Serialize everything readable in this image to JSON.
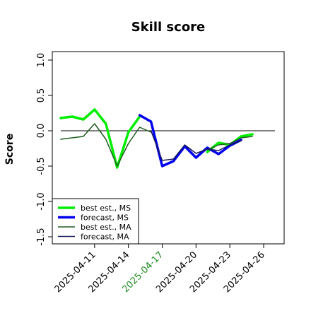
{
  "chart_data": {
    "type": "line",
    "title": "Skill score",
    "xlabel": "",
    "ylabel": "Score",
    "ylim": [
      -1.55,
      1.1
    ],
    "yticks": [
      1.0,
      0.5,
      0.0,
      -0.5,
      -1.0,
      -1.5
    ],
    "ytick_labels": [
      "1.0",
      "0.5",
      "0.0",
      "-0.5",
      "-1.0",
      "-1.5"
    ],
    "x": [
      "2025-04-08",
      "2025-04-09",
      "2025-04-10",
      "2025-04-11",
      "2025-04-12",
      "2025-04-13",
      "2025-04-14",
      "2025-04-15",
      "2025-04-16",
      "2025-04-17",
      "2025-04-18",
      "2025-04-19",
      "2025-04-20",
      "2025-04-21",
      "2025-04-22",
      "2025-04-23",
      "2025-04-24",
      "2025-04-25",
      "2025-04-26"
    ],
    "x_tick_labels": [
      {
        "date": "2025-04-11",
        "label": "2025-04-11",
        "color": "#000000"
      },
      {
        "date": "2025-04-14",
        "label": "2025-04-14",
        "color": "#000000"
      },
      {
        "date": "2025-04-17",
        "label": "2025-04-17",
        "color": "#228B22"
      },
      {
        "date": "2025-04-20",
        "label": "2025-04-20",
        "color": "#000000"
      },
      {
        "date": "2025-04-23",
        "label": "2025-04-23",
        "color": "#000000"
      },
      {
        "date": "2025-04-26",
        "label": "2025-04-26",
        "color": "#000000"
      }
    ],
    "reference_line": 0.0,
    "series": [
      {
        "name": "best est., MS",
        "color": "#00ee00",
        "width": "thick",
        "values": [
          0.18,
          0.2,
          0.16,
          0.3,
          0.1,
          -0.52,
          -0.02,
          0.2,
          null,
          null,
          null,
          null,
          null,
          -0.3,
          -0.17,
          -0.2,
          -0.08,
          -0.05,
          null
        ]
      },
      {
        "name": "forecast, MS",
        "color": "#0000ee",
        "width": "thick",
        "values": [
          null,
          null,
          null,
          null,
          null,
          null,
          null,
          0.22,
          0.13,
          -0.5,
          -0.43,
          -0.22,
          -0.38,
          -0.24,
          -0.33,
          -0.21,
          -0.13,
          null,
          null
        ]
      },
      {
        "name": "best est., MA",
        "color": "#1e5c1e",
        "width": "thin",
        "values": [
          -0.12,
          -0.1,
          -0.08,
          0.1,
          -0.12,
          -0.5,
          -0.18,
          0.05,
          -0.02,
          null,
          null,
          null,
          null,
          -0.27,
          -0.2,
          -0.18,
          -0.1,
          -0.08,
          null
        ]
      },
      {
        "name": "forecast, MA",
        "color": "#1a1a5e",
        "width": "thin",
        "values": [
          null,
          null,
          null,
          null,
          null,
          null,
          null,
          null,
          0.0,
          -0.42,
          -0.4,
          -0.2,
          -0.32,
          -0.26,
          -0.28,
          -0.2,
          -0.14,
          null,
          null
        ]
      }
    ],
    "legend_position": "bottom-left"
  }
}
